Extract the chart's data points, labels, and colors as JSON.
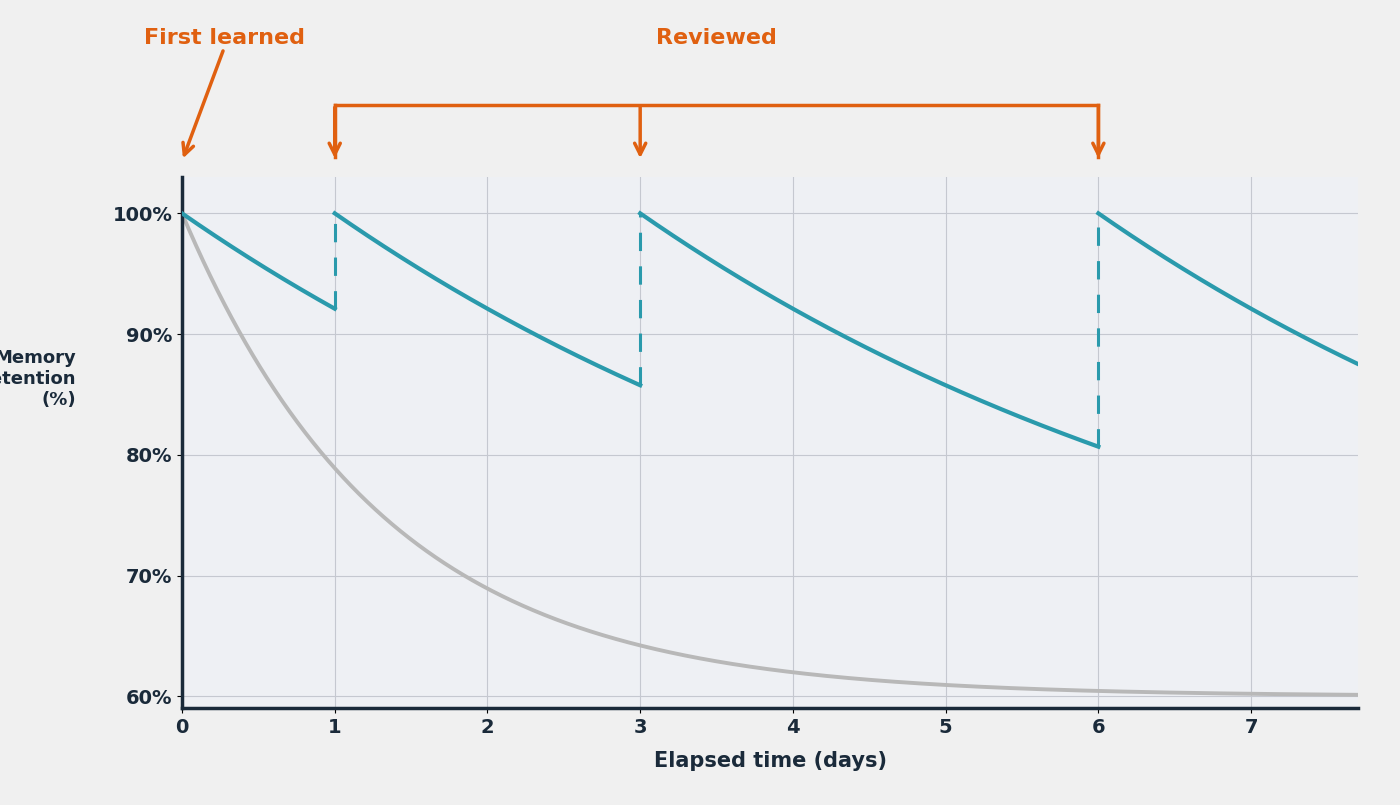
{
  "background_color": "#f0f0f0",
  "plot_bg_color": "#eef0f4",
  "teal_color": "#2a9aac",
  "gray_color": "#b8b8b8",
  "orange_color": "#e06010",
  "dark_color": "#1a2a3a",
  "grid_color": "#c5c8d0",
  "xlim": [
    0,
    7.7
  ],
  "ylim": [
    59,
    103
  ],
  "xticks": [
    0,
    1,
    2,
    3,
    4,
    5,
    6,
    7
  ],
  "yticks": [
    60,
    70,
    80,
    90,
    100
  ],
  "ytick_labels": [
    "60%",
    "70%",
    "80%",
    "90%",
    "100%"
  ],
  "xlabel": "Elapsed time (days)",
  "ylabel": "Memory\nretention\n(%)",
  "review_times": [
    1,
    3,
    6
  ],
  "decay_rate_original": 0.75,
  "decay_rate_reviewed": 0.22,
  "annotation_first_learned": "First learned",
  "annotation_reviewed": "Reviewed",
  "figsize": [
    14,
    8.05
  ],
  "dpi": 100
}
